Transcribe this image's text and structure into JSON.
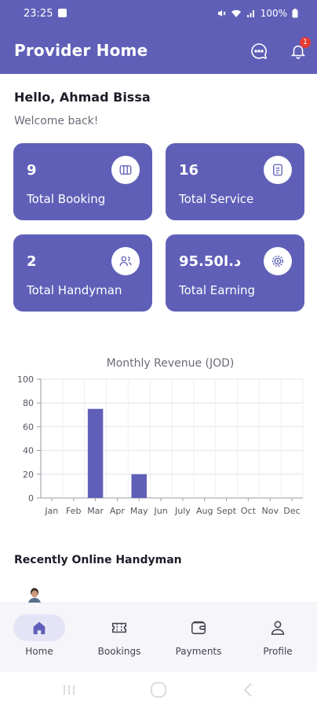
{
  "status_bar": {
    "time": "23:25",
    "battery": "100%"
  },
  "app_bar": {
    "title": "Provider Home",
    "notification_count": "1"
  },
  "greeting": "Hello, Ahmad Bissa",
  "welcome": "Welcome back!",
  "stats": [
    {
      "value": "9",
      "label": "Total Booking",
      "icon": "booking-icon"
    },
    {
      "value": "16",
      "label": "Total Service",
      "icon": "service-icon"
    },
    {
      "value": "2",
      "label": "Total Handyman",
      "icon": "handyman-icon"
    },
    {
      "value": "95.50د.ا",
      "label": "Total Earning",
      "icon": "earning-icon"
    }
  ],
  "chart_data": {
    "type": "bar",
    "title": "Monthly Revenue (JOD)",
    "categories": [
      "Jan",
      "Feb",
      "Mar",
      "Apr",
      "May",
      "Jun",
      "July",
      "Aug",
      "Sept",
      "Oct",
      "Nov",
      "Dec"
    ],
    "values": [
      0,
      0,
      75,
      0,
      20,
      0,
      0,
      0,
      0,
      0,
      0,
      0
    ],
    "ylim": [
      0,
      100
    ],
    "yticks": [
      0,
      20,
      40,
      60,
      80,
      100
    ],
    "grid": true,
    "color": "#5f5fb8"
  },
  "recent_title": "Recently Online Handyman",
  "nav": {
    "home": "Home",
    "bookings": "Bookings",
    "payments": "Payments",
    "profile": "Profile"
  },
  "colors": {
    "primary": "#5f5fb8",
    "badge": "#e53935"
  }
}
